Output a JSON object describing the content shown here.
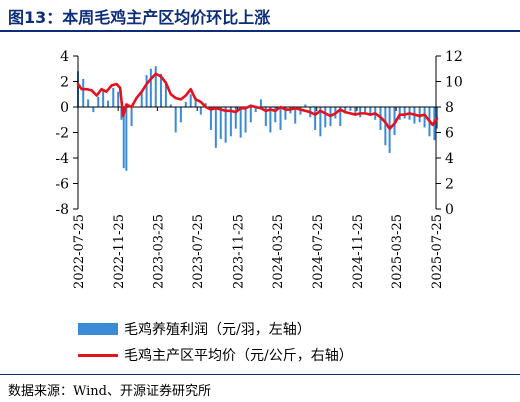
{
  "title": "图13：本周毛鸡主产区均价环比上涨",
  "legend": {
    "bars_label": "毛鸡养殖利润（元/羽，左轴）",
    "line_label": "毛鸡主产区平均价（元/公斤，右轴）"
  },
  "source": "数据来源：Wind、开源证券研究所",
  "colors": {
    "bars": "#3a8ad6",
    "line": "#e8101a",
    "title": "#0b2d7a"
  },
  "chart_data": {
    "type": "bar+line",
    "grid": false,
    "legend_position": "bottom",
    "x_ticks": [
      "2022-07-25",
      "2022-11-25",
      "2023-03-25",
      "2023-07-25",
      "2023-11-25",
      "2024-03-25",
      "2024-07-25",
      "2024-11-25",
      "2025-03-25",
      "2025-07-25"
    ],
    "y_left": {
      "ticks": [
        4,
        2,
        0,
        -2,
        -4,
        -6,
        -8
      ],
      "range": [
        -8,
        4
      ]
    },
    "y_right": {
      "ticks": [
        12,
        10,
        8,
        6,
        4,
        2,
        0
      ],
      "range": [
        0,
        12
      ]
    },
    "bar_series": {
      "name": "毛鸡养殖利润（元/羽，左轴）",
      "axis": "left",
      "points": [
        [
          "2022-07-25",
          2.8
        ],
        [
          "2022-08-10",
          2.2
        ],
        [
          "2022-08-25",
          0.6
        ],
        [
          "2022-09-10",
          -0.4
        ],
        [
          "2022-09-25",
          0.8
        ],
        [
          "2022-10-10",
          1.4
        ],
        [
          "2022-10-25",
          0.5
        ],
        [
          "2022-11-10",
          1.5
        ],
        [
          "2022-11-25",
          1.2
        ],
        [
          "2022-12-05",
          -1.0
        ],
        [
          "2022-12-12",
          -4.8
        ],
        [
          "2022-12-20",
          -5.0
        ],
        [
          "2023-01-05",
          -1.5
        ],
        [
          "2023-01-20",
          0.0
        ],
        [
          "2023-02-05",
          1.2
        ],
        [
          "2023-02-20",
          2.5
        ],
        [
          "2023-03-05",
          3.0
        ],
        [
          "2023-03-20",
          3.2
        ],
        [
          "2023-04-05",
          2.6
        ],
        [
          "2023-04-20",
          1.8
        ],
        [
          "2023-05-05",
          0.2
        ],
        [
          "2023-05-20",
          -2.0
        ],
        [
          "2023-06-05",
          -1.2
        ],
        [
          "2023-06-20",
          0.4
        ],
        [
          "2023-07-05",
          1.0
        ],
        [
          "2023-07-20",
          0.8
        ],
        [
          "2023-08-05",
          -0.6
        ],
        [
          "2023-08-20",
          0.3
        ],
        [
          "2023-09-05",
          -1.8
        ],
        [
          "2023-09-20",
          -3.2
        ],
        [
          "2023-10-05",
          -2.5
        ],
        [
          "2023-10-20",
          -2.8
        ],
        [
          "2023-11-05",
          -2.3
        ],
        [
          "2023-11-20",
          -1.7
        ],
        [
          "2023-12-05",
          -2.4
        ],
        [
          "2023-12-20",
          -2.0
        ],
        [
          "2024-01-05",
          -1.2
        ],
        [
          "2024-01-20",
          -0.4
        ],
        [
          "2024-02-05",
          0.6
        ],
        [
          "2024-02-20",
          -1.5
        ],
        [
          "2024-03-05",
          -2.0
        ],
        [
          "2024-03-20",
          -1.2
        ],
        [
          "2024-04-05",
          -1.8
        ],
        [
          "2024-04-20",
          -1.0
        ],
        [
          "2024-05-05",
          -0.5
        ],
        [
          "2024-05-20",
          -1.3
        ],
        [
          "2024-06-05",
          -0.6
        ],
        [
          "2024-06-20",
          0.2
        ],
        [
          "2024-07-05",
          -0.8
        ],
        [
          "2024-07-20",
          -1.8
        ],
        [
          "2024-08-05",
          -2.3
        ],
        [
          "2024-08-20",
          -1.6
        ],
        [
          "2024-09-05",
          -1.5
        ],
        [
          "2024-09-20",
          -0.9
        ],
        [
          "2024-10-05",
          -1.5
        ],
        [
          "2024-10-20",
          -0.5
        ],
        [
          "2024-11-05",
          -0.3
        ],
        [
          "2024-11-20",
          -0.6
        ],
        [
          "2024-12-05",
          -0.8
        ],
        [
          "2024-12-20",
          -0.4
        ],
        [
          "2025-01-05",
          -0.7
        ],
        [
          "2025-01-20",
          -1.0
        ],
        [
          "2025-02-05",
          -1.8
        ],
        [
          "2025-02-20",
          -3.0
        ],
        [
          "2025-03-05",
          -3.6
        ],
        [
          "2025-03-20",
          -2.2
        ],
        [
          "2025-04-05",
          -1.0
        ],
        [
          "2025-04-20",
          -0.9
        ],
        [
          "2025-05-05",
          -1.0
        ],
        [
          "2025-05-20",
          -1.3
        ],
        [
          "2025-06-05",
          -1.2
        ],
        [
          "2025-06-20",
          -1.6
        ],
        [
          "2025-07-05",
          -2.3
        ],
        [
          "2025-07-20",
          -2.6
        ],
        [
          "2025-07-28",
          -1.7
        ]
      ]
    },
    "line_series": {
      "name": "毛鸡主产区平均价（元/公斤，右轴）",
      "axis": "right",
      "points": [
        [
          "2022-07-25",
          9.8
        ],
        [
          "2022-08-05",
          9.4
        ],
        [
          "2022-08-20",
          9.4
        ],
        [
          "2022-09-05",
          9.3
        ],
        [
          "2022-09-20",
          8.9
        ],
        [
          "2022-10-05",
          9.4
        ],
        [
          "2022-10-20",
          9.2
        ],
        [
          "2022-11-05",
          9.7
        ],
        [
          "2022-11-20",
          9.8
        ],
        [
          "2022-12-01",
          9.5
        ],
        [
          "2022-12-10",
          7.3
        ],
        [
          "2022-12-20",
          8.2
        ],
        [
          "2023-01-05",
          8.0
        ],
        [
          "2023-01-20",
          8.7
        ],
        [
          "2023-02-05",
          9.2
        ],
        [
          "2023-02-20",
          9.8
        ],
        [
          "2023-03-05",
          10.2
        ],
        [
          "2023-03-20",
          10.6
        ],
        [
          "2023-04-05",
          10.4
        ],
        [
          "2023-04-20",
          9.9
        ],
        [
          "2023-05-05",
          9.0
        ],
        [
          "2023-05-20",
          8.7
        ],
        [
          "2023-06-05",
          8.6
        ],
        [
          "2023-06-20",
          8.9
        ],
        [
          "2023-07-05",
          9.4
        ],
        [
          "2023-07-20",
          8.6
        ],
        [
          "2023-08-05",
          8.4
        ],
        [
          "2023-08-20",
          8.0
        ],
        [
          "2023-09-05",
          7.8
        ],
        [
          "2023-09-20",
          7.9
        ],
        [
          "2023-10-05",
          7.8
        ],
        [
          "2023-10-20",
          7.7
        ],
        [
          "2023-11-05",
          7.7
        ],
        [
          "2023-11-20",
          7.6
        ],
        [
          "2023-12-05",
          7.9
        ],
        [
          "2023-12-20",
          7.9
        ],
        [
          "2024-01-05",
          8.1
        ],
        [
          "2024-01-20",
          8.0
        ],
        [
          "2024-02-05",
          7.9
        ],
        [
          "2024-02-20",
          7.7
        ],
        [
          "2024-03-05",
          7.8
        ],
        [
          "2024-03-20",
          7.7
        ],
        [
          "2024-04-05",
          8.0
        ],
        [
          "2024-04-20",
          7.8
        ],
        [
          "2024-05-05",
          7.8
        ],
        [
          "2024-05-20",
          7.9
        ],
        [
          "2024-06-05",
          7.8
        ],
        [
          "2024-06-20",
          7.7
        ],
        [
          "2024-07-05",
          7.6
        ],
        [
          "2024-07-20",
          7.4
        ],
        [
          "2024-08-05",
          7.7
        ],
        [
          "2024-08-20",
          7.5
        ],
        [
          "2024-09-05",
          7.3
        ],
        [
          "2024-09-20",
          7.5
        ],
        [
          "2024-10-05",
          7.8
        ],
        [
          "2024-10-20",
          7.6
        ],
        [
          "2024-11-05",
          7.5
        ],
        [
          "2024-11-20",
          7.4
        ],
        [
          "2024-12-05",
          7.5
        ],
        [
          "2024-12-20",
          7.5
        ],
        [
          "2025-01-05",
          7.4
        ],
        [
          "2025-01-20",
          7.5
        ],
        [
          "2025-02-05",
          7.2
        ],
        [
          "2025-02-20",
          6.8
        ],
        [
          "2025-03-05",
          6.3
        ],
        [
          "2025-03-20",
          6.7
        ],
        [
          "2025-04-05",
          7.4
        ],
        [
          "2025-04-20",
          7.4
        ],
        [
          "2025-05-05",
          7.5
        ],
        [
          "2025-05-20",
          7.4
        ],
        [
          "2025-06-05",
          7.3
        ],
        [
          "2025-06-20",
          7.4
        ],
        [
          "2025-07-05",
          6.9
        ],
        [
          "2025-07-15",
          6.6
        ],
        [
          "2025-07-22",
          6.9
        ],
        [
          "2025-07-28",
          7.1
        ]
      ]
    }
  }
}
